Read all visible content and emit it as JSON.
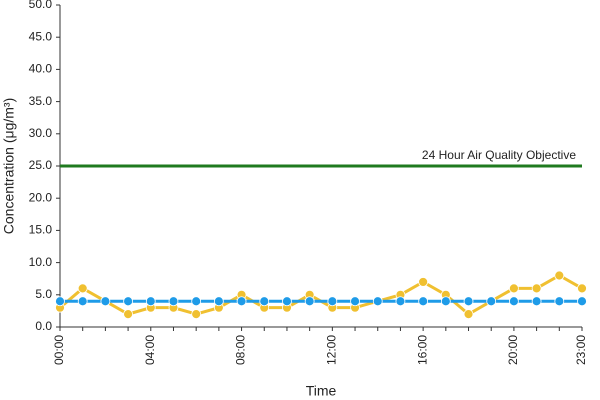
{
  "chart_data": {
    "type": "line",
    "x_label": "Time",
    "y_label": "Concentration (μg/m³)",
    "categories": [
      "00:00",
      null,
      null,
      null,
      "04:00",
      null,
      null,
      null,
      "08:00",
      null,
      null,
      null,
      "12:00",
      null,
      null,
      null,
      "16:00",
      null,
      null,
      null,
      "20:00",
      null,
      null,
      "23:00"
    ],
    "series": [
      {
        "color": "#f0c030",
        "values": [
          3,
          6,
          4,
          2,
          3,
          3,
          2,
          3,
          5,
          3,
          3,
          5,
          3,
          3,
          4,
          5,
          7,
          5,
          2,
          4,
          6,
          6,
          8,
          6
        ]
      },
      {
        "color": "#1e9be8",
        "values": [
          4,
          4,
          4,
          4,
          4,
          4,
          4,
          4,
          4,
          4,
          4,
          4,
          4,
          4,
          4,
          4,
          4,
          4,
          4,
          4,
          4,
          4,
          4,
          4
        ]
      }
    ],
    "reference_line": {
      "value": 25,
      "label": "24 Hour Air Quality Objective",
      "color": "#1f7a1f"
    },
    "ylim": [
      0,
      50
    ],
    "yticks": [
      {
        "value": 0,
        "label": "0.0"
      },
      {
        "value": 5,
        "label": "5.0"
      },
      {
        "value": 10,
        "label": "10.0"
      },
      {
        "value": 15,
        "label": "15.0"
      },
      {
        "value": 20,
        "label": "20.0"
      },
      {
        "value": 25,
        "label": "25.0"
      },
      {
        "value": 30,
        "label": "30.0"
      },
      {
        "value": 35,
        "label": "35.0"
      },
      {
        "value": 40,
        "label": "40.0"
      },
      {
        "value": 45,
        "label": "45.0"
      },
      {
        "value": 50,
        "label": "50.0"
      }
    ],
    "grid": false
  }
}
